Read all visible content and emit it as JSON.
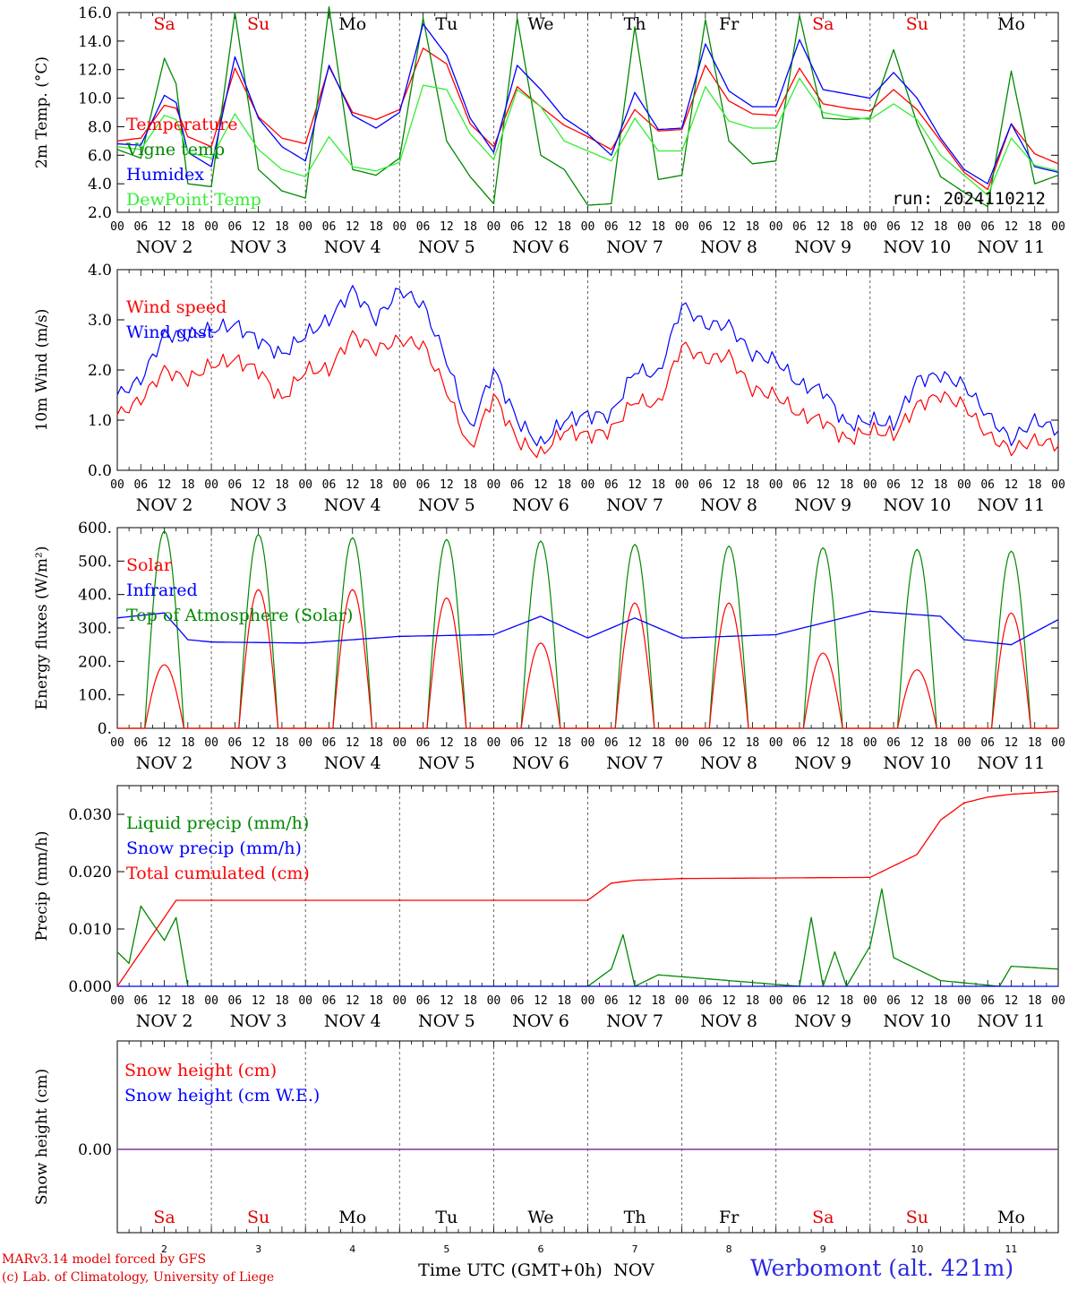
{
  "days": [
    "Sa",
    "Su",
    "Mo",
    "Tu",
    "We",
    "Th",
    "Fr",
    "Sa",
    "Su",
    "Mo"
  ],
  "day_colors": [
    "#e00000",
    "#e00000",
    "#000000",
    "#000000",
    "#000000",
    "#000000",
    "#000000",
    "#e00000",
    "#e00000",
    "#000000"
  ],
  "date_labels": [
    "NOV  2",
    "NOV  3",
    "NOV  4",
    "NOV  5",
    "NOV  6",
    "NOV  7",
    "NOV  8",
    "NOV  9",
    "NOV 10",
    "NOV 11"
  ],
  "hour_labels": [
    "00",
    "06",
    "12",
    "18"
  ],
  "last_hour_label": "00",
  "bottom_day_numbers": [
    "2",
    "3",
    "4",
    "5",
    "6",
    "7",
    "8",
    "9",
    "10",
    "11"
  ],
  "xlabel": "Time UTC (GMT+0h)",
  "xlabel_month": "NOV",
  "footer": {
    "model": "MARv3.14 model forced by GFS",
    "copyright": "(c) Lab. of Climatology, University of Liege",
    "station": "Werbomont (alt. 421m)"
  },
  "chart_data": [
    {
      "type": "line",
      "ylabel": "2m Temp. (°C)",
      "ylim": [
        2.0,
        16.0
      ],
      "yticks": [
        "2.0",
        "4.0",
        "6.0",
        "8.0",
        "10.0",
        "12.0",
        "14.0",
        "16.0"
      ],
      "run_label": "run: 2024110212",
      "x_hours": [
        0,
        6,
        12,
        15,
        18,
        24,
        30,
        36,
        42,
        48,
        54,
        60,
        66,
        72,
        78,
        84,
        90,
        96,
        102,
        108,
        114,
        120,
        126,
        132,
        138,
        144,
        150,
        156,
        162,
        168,
        174,
        180,
        186,
        192,
        198,
        204,
        210,
        216,
        222,
        228,
        234,
        240
      ],
      "series": [
        {
          "name": "Temperature",
          "color": "#ff0000",
          "values": [
            7.0,
            7.2,
            9.5,
            9.3,
            7.3,
            6.6,
            12.1,
            8.7,
            7.2,
            6.8,
            12.2,
            9.0,
            8.5,
            9.2,
            13.5,
            12.4,
            8.2,
            6.6,
            10.8,
            9.4,
            8.1,
            7.3,
            6.4,
            9.2,
            7.7,
            7.8,
            12.3,
            9.8,
            8.9,
            8.8,
            12.1,
            9.6,
            9.3,
            9.1,
            10.6,
            9.2,
            7.0,
            4.8,
            3.6,
            8.2,
            6.1,
            5.4
          ]
        },
        {
          "name": "Vigne temp",
          "color": "#008800",
          "values": [
            6.4,
            5.8,
            12.8,
            11.0,
            4.0,
            3.8,
            16.0,
            5.0,
            3.5,
            3.0,
            16.4,
            5.0,
            4.6,
            5.8,
            15.6,
            7.0,
            4.5,
            2.6,
            15.6,
            6.0,
            5.0,
            2.5,
            2.6,
            15.0,
            4.3,
            4.6,
            15.5,
            7.0,
            5.4,
            5.6,
            15.8,
            8.6,
            8.5,
            8.6,
            13.4,
            8.2,
            4.5,
            3.4,
            2.4,
            11.9,
            4.0,
            4.6
          ]
        },
        {
          "name": "Humidex",
          "color": "#0000ff",
          "values": [
            6.8,
            6.7,
            10.2,
            9.7,
            6.2,
            5.2,
            12.9,
            8.6,
            6.6,
            5.6,
            12.3,
            8.8,
            7.9,
            9.0,
            15.2,
            13.0,
            8.6,
            6.2,
            12.3,
            10.6,
            8.6,
            7.5,
            6.0,
            10.4,
            7.8,
            7.9,
            13.8,
            10.5,
            9.4,
            9.4,
            14.1,
            10.6,
            10.3,
            10.0,
            11.8,
            10.0,
            7.2,
            5.0,
            4.0,
            8.2,
            5.2,
            4.8
          ]
        },
        {
          "name": "DewPoint Temp",
          "color": "#33ee33",
          "values": [
            6.6,
            6.4,
            8.8,
            8.5,
            6.2,
            5.8,
            8.9,
            6.4,
            5.0,
            4.5,
            7.3,
            5.2,
            4.9,
            5.5,
            10.9,
            10.6,
            7.5,
            5.7,
            10.6,
            9.4,
            7.0,
            6.3,
            5.6,
            8.6,
            6.3,
            6.3,
            10.8,
            8.4,
            7.9,
            7.9,
            11.4,
            9.0,
            8.7,
            8.5,
            9.6,
            8.5,
            6.0,
            4.6,
            3.2,
            7.2,
            5.3,
            4.9
          ]
        }
      ]
    },
    {
      "type": "line",
      "ylabel": "10m Wind (m/s)",
      "ylim": [
        0.0,
        4.0
      ],
      "yticks": [
        "0.0",
        "1.0",
        "2.0",
        "3.0",
        "4.0"
      ],
      "x_hours": [
        0,
        6,
        12,
        18,
        24,
        30,
        36,
        42,
        48,
        54,
        60,
        66,
        72,
        78,
        84,
        90,
        96,
        102,
        108,
        114,
        120,
        126,
        132,
        138,
        144,
        150,
        156,
        162,
        168,
        174,
        180,
        186,
        192,
        198,
        204,
        210,
        216,
        222,
        228,
        234,
        240
      ],
      "series": [
        {
          "name": "Wind speed",
          "color": "#ff0000",
          "values": [
            1.1,
            1.4,
            2.0,
            1.8,
            2.1,
            2.2,
            2.0,
            1.4,
            2.0,
            2.0,
            2.7,
            2.4,
            2.6,
            2.5,
            1.6,
            0.4,
            1.5,
            0.6,
            0.3,
            0.8,
            0.7,
            0.8,
            1.4,
            1.3,
            2.5,
            2.2,
            2.3,
            1.6,
            1.5,
            1.1,
            1.0,
            0.6,
            0.8,
            0.7,
            1.3,
            1.5,
            1.3,
            0.7,
            0.4,
            0.6,
            0.5
          ]
        },
        {
          "name": "Wind gust",
          "color": "#0000ff",
          "values": [
            1.5,
            1.8,
            2.7,
            2.7,
            2.8,
            2.9,
            2.6,
            2.3,
            2.7,
            3.0,
            3.6,
            3.0,
            3.6,
            3.3,
            2.2,
            0.8,
            2.0,
            1.0,
            0.5,
            1.0,
            1.1,
            1.1,
            2.0,
            1.9,
            3.3,
            2.9,
            2.9,
            2.3,
            2.2,
            1.7,
            1.6,
            0.9,
            1.0,
            0.9,
            1.8,
            1.9,
            1.7,
            1.1,
            0.6,
            1.0,
            0.8
          ]
        }
      ]
    },
    {
      "type": "line",
      "ylabel": "Energy fluxes (W/m²)",
      "ylim": [
        0,
        600
      ],
      "yticks": [
        "0.",
        "100.",
        "200.",
        "300.",
        "400.",
        "500.",
        "600."
      ],
      "series": [
        {
          "name": "Solar",
          "color": "#ff0000",
          "peaks_W_m2": [
            190,
            415,
            415,
            390,
            255,
            375,
            375,
            225,
            175,
            345
          ],
          "daylight_hours": [
            7,
            17
          ]
        },
        {
          "name": "Infrared",
          "color": "#0000ff",
          "x_hours": [
            0,
            12,
            18,
            24,
            48,
            72,
            96,
            108,
            120,
            132,
            144,
            168,
            192,
            210,
            216,
            228,
            240
          ],
          "values": [
            330,
            345,
            265,
            258,
            255,
            275,
            280,
            335,
            270,
            330,
            270,
            280,
            350,
            335,
            265,
            250,
            325
          ]
        },
        {
          "name": "Top of Atmosphere (Solar)",
          "color": "#008800",
          "peaks_W_m2": [
            590,
            580,
            570,
            565,
            560,
            550,
            545,
            540,
            535,
            530
          ],
          "daylight_hours": [
            7,
            17
          ]
        }
      ]
    },
    {
      "type": "line",
      "ylabel": "Precip (mm/h)",
      "ylim": [
        0.0,
        0.035
      ],
      "yticks": [
        "0.000",
        "0.010",
        "0.020",
        "0.030"
      ],
      "series": [
        {
          "name": "Liquid precip (mm/h)",
          "color": "#008800",
          "x_hours": [
            0,
            3,
            6,
            9,
            12,
            15,
            18,
            120,
            126,
            129,
            132,
            138,
            174,
            177,
            180,
            183,
            186,
            192,
            195,
            198,
            204,
            210,
            225,
            228,
            240
          ],
          "values": [
            0.006,
            0.004,
            0.014,
            0.011,
            0.008,
            0.012,
            0.0,
            0.0,
            0.003,
            0.009,
            0.0,
            0.002,
            0.0,
            0.012,
            0.0,
            0.006,
            0.0,
            0.007,
            0.017,
            0.005,
            0.003,
            0.001,
            0.0,
            0.0035,
            0.003
          ]
        },
        {
          "name": "Snow precip (mm/h)",
          "color": "#0000ff",
          "x_hours": [
            0,
            240
          ],
          "values": [
            0.0,
            0.0
          ]
        },
        {
          "name": "Total cumulated (cm)",
          "color": "#ff0000",
          "x_hours": [
            0,
            6,
            12,
            15,
            120,
            126,
            132,
            144,
            192,
            198,
            204,
            210,
            216,
            222,
            228,
            240
          ],
          "values": [
            0.0,
            0.006,
            0.012,
            0.015,
            0.015,
            0.018,
            0.0185,
            0.0188,
            0.019,
            0.021,
            0.023,
            0.029,
            0.032,
            0.033,
            0.0335,
            0.034
          ]
        }
      ]
    },
    {
      "type": "line",
      "ylabel": "Snow height (cm)",
      "yticks": [
        "0.00"
      ],
      "series": [
        {
          "name": "Snow height (cm)",
          "color": "#ff0000",
          "x_hours": [
            0,
            240
          ],
          "values": [
            0.0,
            0.0
          ]
        },
        {
          "name": "Snow height (cm W.E.)",
          "color": "#0000ff",
          "x_hours": [
            0,
            240
          ],
          "values": [
            0.0,
            0.0
          ]
        }
      ]
    }
  ]
}
